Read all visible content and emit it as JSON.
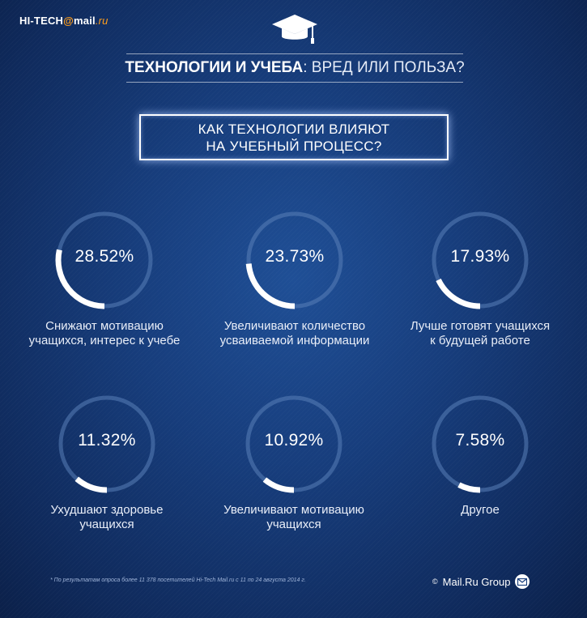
{
  "header": {
    "logo_brand": "HI-TECH",
    "logo_at": "@",
    "logo_mail": "mail",
    "logo_ru": ".ru",
    "title_strong": "ТЕХНОЛОГИИ И УЧЕБА",
    "title_light": " : ВРЕД ИЛИ ПОЛЬЗА?"
  },
  "question": {
    "line1": "КАК ТЕХНОЛОГИИ ВЛИЯЮТ",
    "line2": "НА УЧЕБНЫЙ ПРОЦЕСС?"
  },
  "icons": {
    "cap": "graduation-cap-icon",
    "mail": "envelope-icon"
  },
  "colors": {
    "ring_track": "#5a7fb8",
    "ring_fill": "#ffffff",
    "accent": "#ff9e1b"
  },
  "chart_data": {
    "type": "pie",
    "series": [
      {
        "label": "Снижают мотивацию учащихся, интерес к учебе",
        "value": 28.52,
        "value_label": "28.52%",
        "label_lines": [
          "Снижают мотивацию",
          "учащихся, интерес к учебе"
        ]
      },
      {
        "label": "Увеличивают количество усваиваемой информации",
        "value": 23.73,
        "value_label": "23.73%",
        "label_lines": [
          "Увеличивают количество",
          "усваиваемой информации"
        ]
      },
      {
        "label": "Лучше готовят учащихся к будущей работе",
        "value": 17.93,
        "value_label": "17.93%",
        "label_lines": [
          "Лучше готовят учащихся",
          "к будущей работе"
        ]
      },
      {
        "label": "Ухудшают здоровье учащихся",
        "value": 11.32,
        "value_label": "11.32%",
        "label_lines": [
          "Ухудшают здоровье",
          "учащихся"
        ]
      },
      {
        "label": "Увеличивают мотивацию учащихся",
        "value": 10.92,
        "value_label": "10.92%",
        "label_lines": [
          "Увеличивают мотивацию",
          "учащихся"
        ]
      },
      {
        "label": "Другое",
        "value": 7.58,
        "value_label": "7.58%",
        "label_lines": [
          "Другое",
          ""
        ]
      }
    ]
  },
  "footer": {
    "footnote": "* По результатам опроса более 11 378 посетителей Hi-Tech Mail.ru с 11 по 24 августа 2014 г.",
    "copyright": "©",
    "company": "Mail.Ru Group"
  }
}
